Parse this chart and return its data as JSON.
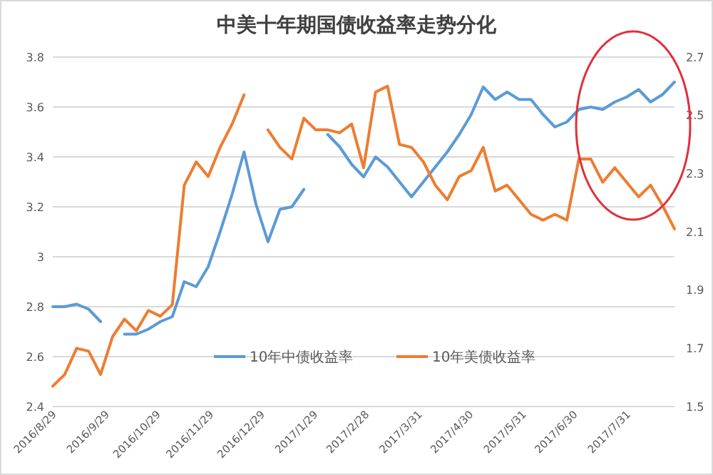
{
  "chart_data": {
    "type": "line",
    "title": "中美十年期国债收益率走势分化",
    "x": [
      "2016-08-29",
      "2016-09-05",
      "2016-09-12",
      "2016-09-19",
      "2016-09-26",
      "2016-10-03",
      "2016-10-10",
      "2016-10-17",
      "2016-10-24",
      "2016-10-31",
      "2016-11-07",
      "2016-11-14",
      "2016-11-21",
      "2016-11-28",
      "2016-12-05",
      "2016-12-12",
      "2016-12-19",
      "2016-12-26",
      "2017-01-02",
      "2017-01-09",
      "2017-01-16",
      "2017-01-23",
      "2017-01-30",
      "2017-02-06",
      "2017-02-13",
      "2017-02-20",
      "2017-02-27",
      "2017-03-06",
      "2017-03-13",
      "2017-03-20",
      "2017-03-27",
      "2017-04-03",
      "2017-04-10",
      "2017-04-17",
      "2017-04-24",
      "2017-05-01",
      "2017-05-08",
      "2017-05-15",
      "2017-05-22",
      "2017-05-29",
      "2017-06-05",
      "2017-06-12",
      "2017-06-19",
      "2017-06-26",
      "2017-07-03",
      "2017-07-10",
      "2017-07-17",
      "2017-07-24",
      "2017-07-31",
      "2017-08-07",
      "2017-08-14",
      "2017-08-21",
      "2017-08-28"
    ],
    "series": [
      {
        "name": "10年中债收益率",
        "color": "#5b9bd5",
        "values": [
          2.8,
          2.8,
          2.81,
          2.79,
          2.74,
          null,
          2.69,
          2.69,
          2.71,
          2.74,
          2.76,
          2.9,
          2.88,
          2.96,
          3.1,
          3.25,
          3.42,
          3.21,
          3.06,
          3.19,
          3.2,
          3.27,
          null,
          3.49,
          3.44,
          3.37,
          3.32,
          3.4,
          3.36,
          3.3,
          3.24,
          3.3,
          3.36,
          3.42,
          3.49,
          3.57,
          3.68,
          3.63,
          3.66,
          3.63,
          3.63,
          3.57,
          3.52,
          3.54,
          3.59,
          3.6,
          3.59,
          3.62,
          3.64,
          3.67,
          3.62,
          3.65,
          3.7
        ]
      },
      {
        "name": "10年美债收益率",
        "color": "#ed7d31",
        "axis": "y2",
        "values": [
          1.57,
          1.61,
          1.7,
          1.69,
          1.61,
          1.74,
          1.8,
          1.76,
          1.83,
          1.81,
          1.85,
          2.26,
          2.34,
          2.29,
          2.39,
          2.47,
          2.57,
          null,
          2.45,
          2.39,
          2.35,
          2.49,
          2.45,
          2.45,
          2.44,
          2.47,
          2.32,
          2.58,
          2.6,
          2.4,
          2.39,
          2.34,
          2.26,
          2.21,
          2.29,
          2.31,
          2.39,
          2.24,
          2.26,
          2.21,
          2.16,
          2.14,
          2.16,
          2.14,
          2.35,
          2.35,
          2.27,
          2.32,
          2.27,
          2.22,
          2.26,
          2.19,
          2.11
        ]
      }
    ],
    "xlim": [
      "2016-08-29",
      "2017-08-28"
    ],
    "xticks": [
      {
        "value": "2016-08-29",
        "label": "2016/8/29"
      },
      {
        "value": "2016-09-29",
        "label": "2016/9/29"
      },
      {
        "value": "2016-10-29",
        "label": "2016/10/29"
      },
      {
        "value": "2016-11-29",
        "label": "2016/11/29"
      },
      {
        "value": "2016-12-29",
        "label": "2016/12/29"
      },
      {
        "value": "2017-01-29",
        "label": "2017/1/29"
      },
      {
        "value": "2017-02-28",
        "label": "2017/2/28"
      },
      {
        "value": "2017-03-31",
        "label": "2017/3/31"
      },
      {
        "value": "2017-04-30",
        "label": "2017/4/30"
      },
      {
        "value": "2017-05-31",
        "label": "2017/5/31"
      },
      {
        "value": "2017-06-30",
        "label": "2017/6/30"
      },
      {
        "value": "2017-07-31",
        "label": "2017/7/31"
      }
    ],
    "ylim": [
      2.4,
      3.8
    ],
    "yticks": [
      2.4,
      2.6,
      2.8,
      3,
      3.2,
      3.4,
      3.6,
      3.8
    ],
    "y2lim": [
      1.5,
      2.7
    ],
    "y2ticks": [
      1.5,
      1.7,
      1.9,
      2.1,
      2.3,
      2.5,
      2.7
    ],
    "grid": "y",
    "legend": "bottom",
    "marker": "none",
    "line_style": "solid"
  }
}
